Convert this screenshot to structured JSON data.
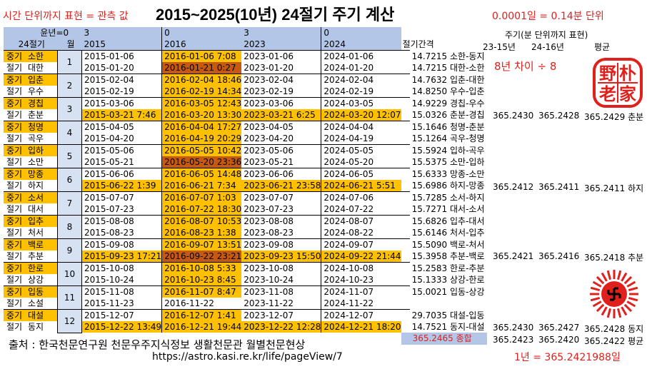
{
  "top_note": "시간 단위까지 표현 = 관측 값",
  "title": "2015~2025(10년) 24절기 주기 계산",
  "unit_note": "0.0001일 = 0.14분 단위",
  "header": {
    "row1": [
      "",
      "윤년=0",
      "3",
      "0",
      "3",
      "0"
    ],
    "row2": [
      "24절기",
      "월",
      "2015",
      "2016",
      "2023",
      "2024"
    ],
    "interval_label": "절기간격"
  },
  "months": [
    {
      "month": "1",
      "rows": [
        {
          "type": "중기",
          "name": "소한",
          "d2015": "2015-01-06",
          "d2016": "2016-01-06 7:08",
          "d2023": "2023-01-06",
          "d2024": "2024-01-06",
          "interval": "14.7215 소한-동지"
        },
        {
          "type": "절기",
          "name": "대한",
          "d2015": "2015-01-20",
          "d2016": "2016-01-21 0:27",
          "d2023": "2023-01-20",
          "d2024": "2024-01-20",
          "interval": "14.7215 대한-소한"
        }
      ]
    },
    {
      "month": "2",
      "rows": [
        {
          "type": "중기",
          "name": "입춘",
          "d2015": "2015-02-04",
          "d2016": "2016-02-04 18:46",
          "d2023": "2023-02-04",
          "d2024": "2024-02-04",
          "interval": "14.7632 입춘-대한"
        },
        {
          "type": "절기",
          "name": "우수",
          "d2015": "2015-02-19",
          "d2016": "2016-02-19 14:34",
          "d2023": "2023-02-19",
          "d2024": "2024-02-19",
          "interval": "14.8250 우수-입춘"
        }
      ]
    },
    {
      "month": "3",
      "rows": [
        {
          "type": "중기",
          "name": "경칩",
          "d2015": "2015-03-06",
          "d2016": "2016-03-05 12:43",
          "d2023": "2023-03-06",
          "d2024": "2024-03-05",
          "interval": "14.9229 경칩-우수"
        },
        {
          "type": "절기",
          "name": "춘분",
          "d2015": "2015-03-21 7:46",
          "d2016": "2016-03-20 13:30",
          "d2023": "2023-03-21 6:25",
          "d2024": "2024-03-20 12:07",
          "interval": "15.0326 춘분-경칩"
        }
      ]
    },
    {
      "month": "4",
      "rows": [
        {
          "type": "중기",
          "name": "청명",
          "d2015": "2015-04-05",
          "d2016": "2016-04-04 17:27",
          "d2023": "2023-04-05",
          "d2024": "2024-04-04",
          "interval": "15.1646 청명-춘분"
        },
        {
          "type": "절기",
          "name": "곡우",
          "d2015": "2015-04-20",
          "d2016": "2016-04-19 20:29",
          "d2023": "2023-04-20",
          "d2024": "2024-04-19",
          "interval": "15.1264 곡우-청명"
        }
      ]
    },
    {
      "month": "5",
      "rows": [
        {
          "type": "중기",
          "name": "입하",
          "d2015": "2015-05-06",
          "d2016": "2016-05-05 10:42",
          "d2023": "2023-05-06",
          "d2024": "2024-05-05",
          "interval": "15.5924 입하-곡우"
        },
        {
          "type": "절기",
          "name": "소만",
          "d2015": "2015-05-21",
          "d2016": "2016-05-20 23:36",
          "d2023": "2023-05-21",
          "d2024": "2024-05-20",
          "interval": "15.5375 소만-입하"
        }
      ]
    },
    {
      "month": "6",
      "rows": [
        {
          "type": "중기",
          "name": "망종",
          "d2015": "2015-06-06",
          "d2016": "2016-06-05 14:48",
          "d2023": "2023-06-06",
          "d2024": "2024-06-05",
          "interval": "15.6333 망종-소만"
        },
        {
          "type": "절기",
          "name": "하지",
          "d2015": "2015-06-22 1:39",
          "d2016": "2016-06-21 7:34",
          "d2023": "2023-06-21 23:58",
          "d2024": "2024-06-21 5:51",
          "interval": "15.6986 하지-망종"
        }
      ]
    },
    {
      "month": "7",
      "rows": [
        {
          "type": "중기",
          "name": "소서",
          "d2015": "2015-07-07",
          "d2016": "2016-07-07 1:03",
          "d2023": "2023-07-07",
          "d2024": "2024-07-06",
          "interval": "15.7285 소서-하지"
        },
        {
          "type": "절기",
          "name": "대서",
          "d2015": "2015-07-23",
          "d2016": "2016-07-22 18:30",
          "d2023": "2023-07-23",
          "d2024": "2024-07-22",
          "interval": "15.7271 대서-소서"
        }
      ]
    },
    {
      "month": "8",
      "rows": [
        {
          "type": "중기",
          "name": "입추",
          "d2015": "2015-08-08",
          "d2016": "2016-08-07 10:53",
          "d2023": "2023-08-08",
          "d2024": "2024-08-07",
          "interval": "15.6826 입추-대서"
        },
        {
          "type": "절기",
          "name": "처서",
          "d2015": "2015-08-23",
          "d2016": "2016-08-23 1:38",
          "d2023": "2023-08-23",
          "d2024": "2024-08-22",
          "interval": "15.6146 처서-입추"
        }
      ]
    },
    {
      "month": "9",
      "rows": [
        {
          "type": "중기",
          "name": "백로",
          "d2015": "2015-09-08",
          "d2016": "2016-09-07 13:51",
          "d2023": "2023-09-08",
          "d2024": "2024-09-07",
          "interval": "15.5090 백로-처서"
        },
        {
          "type": "절기",
          "name": "추분",
          "d2015": "2015-09-23 17:21",
          "d2016": "2016-09-22 23:21",
          "d2023": "2023-09-23 15:50",
          "d2024": "2024-09-22 21:44",
          "interval": "15.3958 추분-백로"
        }
      ]
    },
    {
      "month": "10",
      "rows": [
        {
          "type": "중기",
          "name": "한로",
          "d2015": "2015-10-08",
          "d2016": "2016-10-08 5:33",
          "d2023": "2023-10-08",
          "d2024": "2024-10-08",
          "interval": "15.2583 한로-추분"
        },
        {
          "type": "절기",
          "name": "상강",
          "d2015": "2015-10-24",
          "d2016": "2016-10-23 8:45",
          "d2023": "2023-10-24",
          "d2024": "2024-10-23",
          "interval": "15.1333 상강-한로"
        }
      ]
    },
    {
      "month": "11",
      "rows": [
        {
          "type": "중기",
          "name": "입동",
          "d2015": "2015-11-08",
          "d2016": "2016-11-07 8:47",
          "d2023": "2023-11-08",
          "d2024": "2024-11-07",
          "interval": "15.0021 입동-상강"
        },
        {
          "type": "절기",
          "name": "소설",
          "d2015": "2015-11-23",
          "d2016": "2016-11-22",
          "d2023": "2023-11-22",
          "d2024": "2024-11-22",
          "interval": ""
        }
      ]
    },
    {
      "month": "12",
      "rows": [
        {
          "type": "중기",
          "name": "대설",
          "d2015": "2015-12-07",
          "d2016": "2016-12-07 1:41",
          "d2023": "2023-12-07",
          "d2024": "2024-12-07",
          "interval": "29.7035 대설-입동"
        },
        {
          "type": "절기",
          "name": "동지",
          "d2015": "2015-12-22 13:49",
          "d2016": "2016-12-21 19:44",
          "d2023": "2023-12-22 12:28",
          "d2024": "2024-12-21 18:20",
          "interval": "14.7521 동지-대설"
        }
      ]
    }
  ],
  "sum_row": {
    "value": "365.2465 종합"
  },
  "right_panel": {
    "header1": "주기(분 단위까지 표현)",
    "header2": [
      "23-15년",
      "24-16년",
      "평균"
    ],
    "note": "8년 차이 ÷ 8",
    "rows": [
      {
        "a": "365.2430",
        "b": "365.2428",
        "c": "365.2429 춘분"
      },
      {
        "a": "365.2412",
        "b": "365.2411",
        "c": "365.2411 하지"
      },
      {
        "a": "365.2421",
        "b": "365.2416",
        "c": "365.2418 추분"
      },
      {
        "a": "365.2430",
        "b": "365.2427",
        "c": "365.2428 동지"
      },
      {
        "a": "365.2423",
        "b": "365.2420",
        "c": "365.2422 평균"
      }
    ],
    "year_text": "1년 = 365.2421988일"
  },
  "footer": {
    "source": "출처 : 한국천문연구원 천문우주지식정보 생활천문관 월별천문현상",
    "url": "https://astro.kasi.re.kr/life/pageView/7"
  },
  "seal_chars": [
    "野",
    "朴",
    "老",
    "家"
  ],
  "colors": {
    "header_blue": "#b3c6e7",
    "month_blue": "#d6e1f1",
    "highlight_orange": "#ffc000",
    "highlight_dark": "#c65911",
    "red": "#e0201c"
  }
}
